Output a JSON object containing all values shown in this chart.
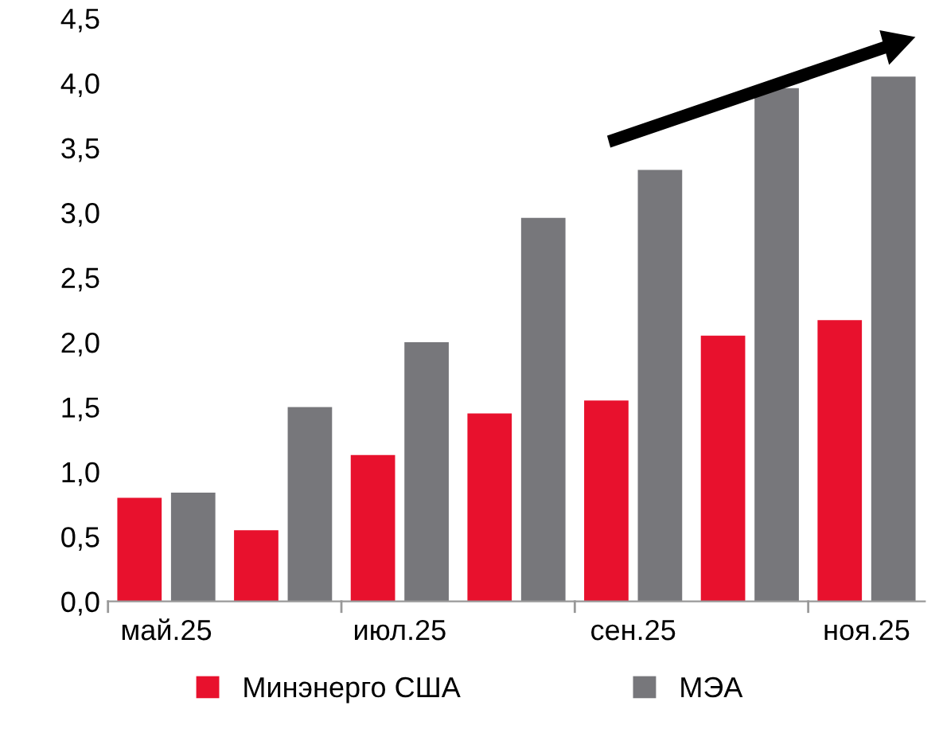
{
  "chart_data": {
    "type": "bar",
    "categories": [
      "май.25",
      null,
      "июл.25",
      null,
      "сен.25",
      null,
      "ноя.25"
    ],
    "series": [
      {
        "name": "Минэнерго США",
        "color": "#e8112d",
        "values": [
          0.8,
          0.55,
          1.13,
          1.45,
          1.55,
          2.05,
          2.17
        ]
      },
      {
        "name": "МЭА",
        "color": "#77777b",
        "values": [
          0.84,
          1.5,
          2.0,
          2.96,
          3.33,
          3.96,
          4.05
        ]
      }
    ],
    "ylim": [
      0,
      4.5
    ],
    "yticks": [
      {
        "value": 0,
        "label": "0,0"
      },
      {
        "value": 0.5,
        "label": "0,5"
      },
      {
        "value": 1,
        "label": "1,0"
      },
      {
        "value": 1.5,
        "label": "1,5"
      },
      {
        "value": 2,
        "label": "2,0"
      },
      {
        "value": 2.5,
        "label": "2,5"
      },
      {
        "value": 3,
        "label": "3,0"
      },
      {
        "value": 3.5,
        "label": "3,5"
      },
      {
        "value": 4,
        "label": "4,0"
      },
      {
        "value": 4.5,
        "label": "4,5"
      }
    ],
    "grid": false,
    "legend": "bottom"
  }
}
